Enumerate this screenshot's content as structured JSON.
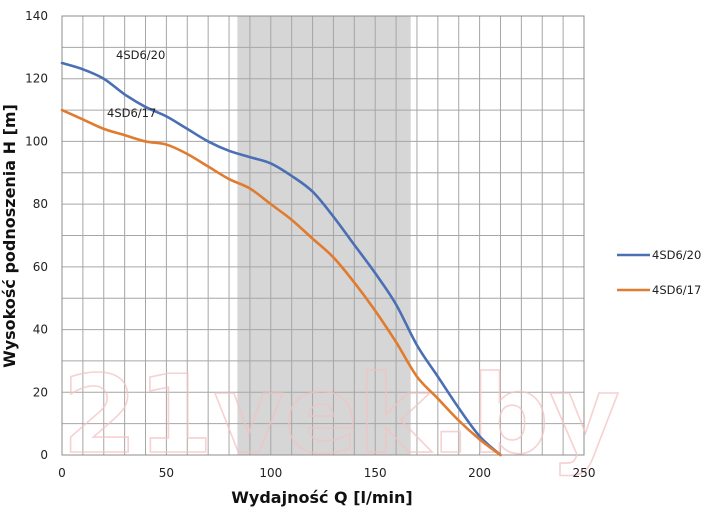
{
  "watermark": "21vek.by",
  "chart_data": {
    "type": "line",
    "xlabel": "Wydajność Q [l/min]",
    "ylabel": "Wysokość podnoszenia H [m]",
    "xlim": [
      0,
      250
    ],
    "ylim": [
      0,
      140
    ],
    "x_ticks": [
      0,
      50,
      100,
      150,
      200,
      250
    ],
    "y_ticks": [
      0,
      20,
      40,
      60,
      80,
      100,
      120,
      140
    ],
    "grid": true,
    "grid_x_step": 10,
    "grid_y_step": 10,
    "highlight_range_x": [
      84,
      167
    ],
    "legend_position": "right",
    "series": [
      {
        "name": "4SD6/20",
        "color": "#4a6fb5",
        "curve_label": "4SD6/20",
        "x": [
          0,
          10,
          20,
          30,
          40,
          50,
          60,
          70,
          80,
          90,
          100,
          110,
          120,
          130,
          140,
          150,
          160,
          170,
          180,
          190,
          200,
          210
        ],
        "y": [
          125,
          123,
          120,
          115,
          111,
          108,
          104,
          100,
          97,
          95,
          93,
          89,
          84,
          76,
          67,
          58,
          48,
          35,
          25,
          15,
          6,
          0
        ]
      },
      {
        "name": "4SD6/17",
        "color": "#e07b2f",
        "curve_label": "4SD6/17",
        "x": [
          0,
          10,
          20,
          30,
          40,
          50,
          60,
          70,
          80,
          90,
          100,
          110,
          120,
          130,
          140,
          150,
          160,
          170,
          180,
          190,
          200,
          210
        ],
        "y": [
          110,
          107,
          104,
          102,
          100,
          99,
          96,
          92,
          88,
          85,
          80,
          75,
          69,
          63,
          55,
          46,
          36,
          25,
          18,
          11,
          5,
          0
        ]
      }
    ]
  }
}
